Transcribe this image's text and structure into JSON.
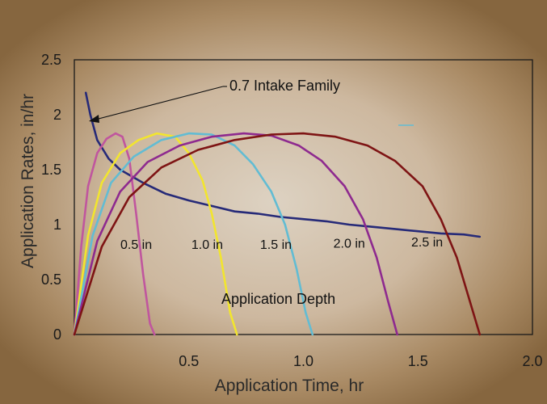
{
  "chart_data": {
    "type": "line",
    "xlabel": "Application Time, hr",
    "ylabel": "Application Rates, in/hr",
    "xlim": [
      0,
      2.0
    ],
    "ylim": [
      0,
      2.5
    ],
    "x_ticks": [
      "0.5",
      "1.0",
      "1.5",
      "2.0"
    ],
    "y_ticks": [
      "0",
      "0.5",
      "1",
      "1.5",
      "2",
      "2.5"
    ],
    "annotation_intake": "0.7 Intake Family",
    "annotation_depth": "Application Depth",
    "series": [
      {
        "name": "0.7 Intake Family",
        "color": "#262a78",
        "x": [
          0.05,
          0.07,
          0.1,
          0.15,
          0.2,
          0.3,
          0.4,
          0.5,
          0.6,
          0.7,
          0.8,
          0.9,
          1.0,
          1.1,
          1.2,
          1.3,
          1.4,
          1.5,
          1.6,
          1.7,
          1.77
        ],
        "y": [
          2.2,
          2.0,
          1.77,
          1.6,
          1.5,
          1.38,
          1.28,
          1.22,
          1.17,
          1.12,
          1.1,
          1.07,
          1.05,
          1.03,
          1.0,
          0.98,
          0.96,
          0.94,
          0.92,
          0.91,
          0.89
        ]
      },
      {
        "name": "0.5 in",
        "color": "#c0569e",
        "x": [
          0.0,
          0.03,
          0.06,
          0.1,
          0.14,
          0.18,
          0.21,
          0.24,
          0.27,
          0.3,
          0.33,
          0.35
        ],
        "y": [
          0.0,
          0.8,
          1.35,
          1.65,
          1.78,
          1.83,
          1.8,
          1.6,
          1.1,
          0.55,
          0.1,
          0.0
        ]
      },
      {
        "name": "1.0 in",
        "color": "#f2e52e",
        "x": [
          0.0,
          0.06,
          0.12,
          0.2,
          0.28,
          0.36,
          0.44,
          0.5,
          0.56,
          0.6,
          0.64,
          0.68,
          0.71
        ],
        "y": [
          0.0,
          0.9,
          1.38,
          1.65,
          1.77,
          1.83,
          1.8,
          1.65,
          1.4,
          1.1,
          0.7,
          0.2,
          0.0
        ]
      },
      {
        "name": "1.5 in",
        "color": "#62bcd3",
        "x": [
          0.0,
          0.08,
          0.16,
          0.26,
          0.38,
          0.5,
          0.6,
          0.7,
          0.78,
          0.86,
          0.92,
          0.97,
          1.01,
          1.04
        ],
        "y": [
          0.0,
          0.9,
          1.38,
          1.62,
          1.77,
          1.83,
          1.82,
          1.72,
          1.55,
          1.3,
          1.0,
          0.6,
          0.2,
          0.0
        ]
      },
      {
        "name": "2.0 in",
        "color": "#8e2a8f",
        "x": [
          0.0,
          0.1,
          0.2,
          0.32,
          0.46,
          0.6,
          0.74,
          0.86,
          0.98,
          1.08,
          1.18,
          1.26,
          1.32,
          1.37,
          1.41
        ],
        "y": [
          0.0,
          0.85,
          1.3,
          1.57,
          1.72,
          1.8,
          1.83,
          1.81,
          1.72,
          1.58,
          1.35,
          1.05,
          0.7,
          0.3,
          0.0
        ]
      },
      {
        "name": "2.5 in",
        "color": "#7e1414",
        "x": [
          0.0,
          0.12,
          0.24,
          0.38,
          0.54,
          0.7,
          0.86,
          1.0,
          1.14,
          1.28,
          1.4,
          1.52,
          1.6,
          1.67,
          1.72,
          1.77
        ],
        "y": [
          0.0,
          0.8,
          1.25,
          1.52,
          1.68,
          1.77,
          1.82,
          1.83,
          1.8,
          1.72,
          1.58,
          1.35,
          1.05,
          0.7,
          0.35,
          0.0
        ]
      }
    ],
    "depth_labels": [
      {
        "text": "0.5 in",
        "x": 0.27,
        "y": 0.78
      },
      {
        "text": "1.0 in",
        "x": 0.58,
        "y": 0.78
      },
      {
        "text": "1.5 in",
        "x": 0.88,
        "y": 0.78
      },
      {
        "text": "2.0 in",
        "x": 1.2,
        "y": 0.79
      },
      {
        "text": "2.5 in",
        "x": 1.54,
        "y": 0.8
      }
    ]
  }
}
